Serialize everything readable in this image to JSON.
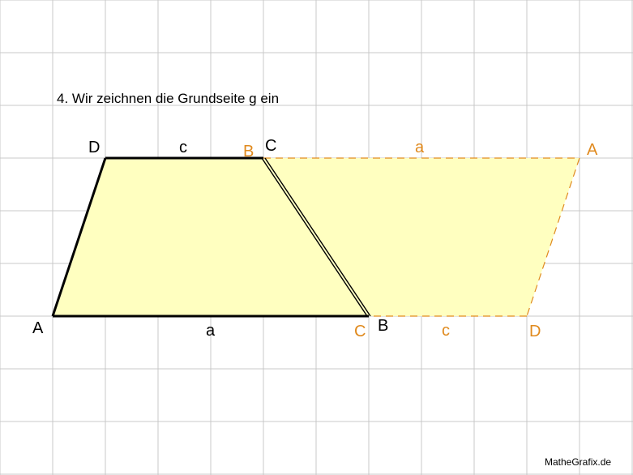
{
  "heading": "4. Wir zeichnen die Grundseite g ein",
  "watermark": "MatheGrafix.de",
  "colors": {
    "grid": "#c8c8c8",
    "fill": "#ffffc0",
    "black_line": "#000000",
    "orange": "#e08a1e",
    "text": "#000000"
  },
  "original_trapezoid": {
    "vertex_labels": {
      "A": "A",
      "B": "B",
      "C": "C",
      "D": "D"
    },
    "side_labels": {
      "a": "a",
      "c": "c"
    }
  },
  "rotated_trapezoid": {
    "vertex_labels": {
      "A": "A",
      "B": "B",
      "C": "C",
      "D": "D"
    },
    "side_labels": {
      "a": "a",
      "c": "c"
    }
  }
}
